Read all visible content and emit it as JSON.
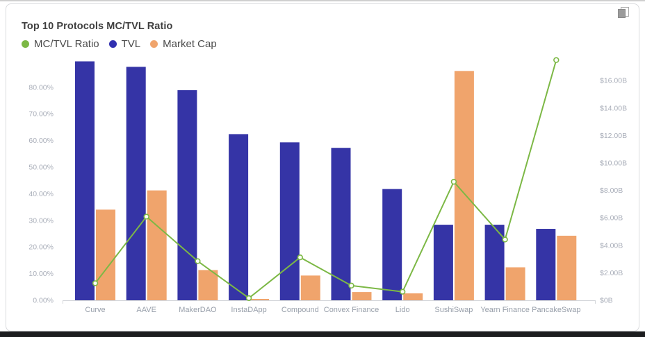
{
  "card": {
    "title": "Top 10 Protocols MC/TVL Ratio"
  },
  "legend": {
    "items": [
      {
        "label": "MC/TVL Ratio",
        "color": "#7CB845"
      },
      {
        "label": "TVL",
        "color": "#3130B0"
      },
      {
        "label": "Market Cap",
        "color": "#F0A46C"
      }
    ]
  },
  "icons": {
    "top_right": "copy-icon"
  },
  "chart_data": {
    "type": "bar",
    "subtype": "combo-bar-line-dual-axis",
    "title": "Top 10 Protocols MC/TVL Ratio",
    "categories": [
      "Curve",
      "AAVE",
      "MakerDAO",
      "InstaDApp",
      "Compound",
      "Convex Finance",
      "Lido",
      "SushiSwap",
      "Yearn Finance",
      "PancakeSwap"
    ],
    "series": [
      {
        "name": "MC/TVL Ratio",
        "kind": "line",
        "axis": "left",
        "unit": "%",
        "color": "#7CB845",
        "values": [
          6.4,
          31.4,
          14.7,
          0.8,
          16.1,
          5.5,
          3.2,
          44.5,
          22.8,
          90.2
        ]
      },
      {
        "name": "TVL",
        "kind": "bar",
        "axis": "right",
        "unit": "$B",
        "color": "#3534A6",
        "values": [
          17.4,
          17.0,
          15.3,
          12.1,
          11.5,
          11.1,
          8.1,
          5.5,
          5.5,
          5.2
        ]
      },
      {
        "name": "Market Cap",
        "kind": "bar",
        "axis": "right",
        "unit": "$B",
        "color": "#F0A46C",
        "values": [
          6.6,
          8.0,
          2.2,
          0.1,
          1.8,
          0.6,
          0.5,
          16.7,
          2.4,
          4.7
        ]
      }
    ],
    "left_axis": {
      "unit": "%",
      "tick_values": [
        0,
        10,
        20,
        30,
        40,
        50,
        60,
        70,
        80
      ],
      "tick_labels": [
        "0.00%",
        "10.00%",
        "20.00%",
        "30.00%",
        "40.00%",
        "50.00%",
        "60.00%",
        "70.00%",
        "80.00%"
      ],
      "range": [
        0,
        90.6
      ]
    },
    "right_axis": {
      "unit": "$B",
      "tick_values": [
        0,
        2,
        4,
        6,
        8,
        10,
        12,
        14,
        16
      ],
      "tick_labels": [
        "$0B",
        "$2.00B",
        "$4.00B",
        "$6.00B",
        "$8.00B",
        "$10.00B",
        "$12.00B",
        "$14.00B",
        "$16.00B"
      ],
      "range": [
        0,
        17.6
      ]
    },
    "grid": false,
    "legend_position": "top-left",
    "xlabel": "",
    "ylabel": ""
  }
}
